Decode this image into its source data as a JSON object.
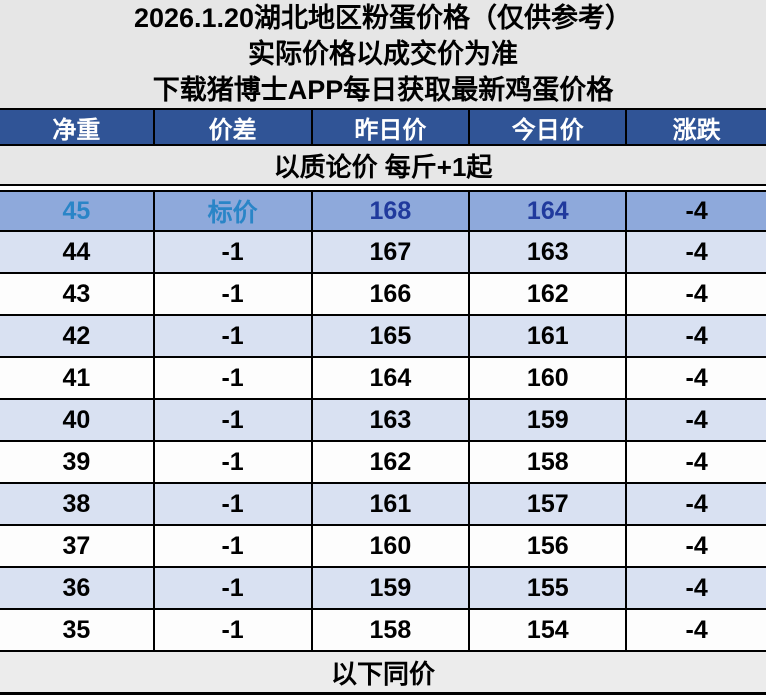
{
  "title_block": {
    "line1": "2026.1.20湖北地区粉蛋价格（仅供参考）",
    "line2": "实际价格以成交价为准",
    "line3": "下载猪博士APP每日获取最新鸡蛋价格"
  },
  "table": {
    "columns": [
      "净重",
      "价差",
      "昨日价",
      "今日价",
      "涨跌"
    ],
    "banner": "以质论价 每斤+1起",
    "footer": "以下同价",
    "rows": [
      {
        "net": "45",
        "diff": "标价",
        "yesterday": "168",
        "today": "164",
        "change": "-4"
      },
      {
        "net": "44",
        "diff": "-1",
        "yesterday": "167",
        "today": "163",
        "change": "-4"
      },
      {
        "net": "43",
        "diff": "-1",
        "yesterday": "166",
        "today": "162",
        "change": "-4"
      },
      {
        "net": "42",
        "diff": "-1",
        "yesterday": "165",
        "today": "161",
        "change": "-4"
      },
      {
        "net": "41",
        "diff": "-1",
        "yesterday": "164",
        "today": "160",
        "change": "-4"
      },
      {
        "net": "40",
        "diff": "-1",
        "yesterday": "163",
        "today": "159",
        "change": "-4"
      },
      {
        "net": "39",
        "diff": "-1",
        "yesterday": "162",
        "today": "158",
        "change": "-4"
      },
      {
        "net": "38",
        "diff": "-1",
        "yesterday": "161",
        "today": "157",
        "change": "-4"
      },
      {
        "net": "37",
        "diff": "-1",
        "yesterday": "160",
        "today": "156",
        "change": "-4"
      },
      {
        "net": "36",
        "diff": "-1",
        "yesterday": "159",
        "today": "155",
        "change": "-4"
      },
      {
        "net": "35",
        "diff": "-1",
        "yesterday": "158",
        "today": "154",
        "change": "-4"
      }
    ]
  },
  "chart_data": {
    "type": "table",
    "title": "2026.1.20湖北地区粉蛋价格（仅供参考）",
    "subtitle_lines": [
      "实际价格以成交价为准",
      "下载猪博士APP每日获取最新鸡蛋价格"
    ],
    "columns": [
      "净重",
      "价差",
      "昨日价",
      "今日价",
      "涨跌"
    ],
    "rows": [
      [
        "45",
        "标价",
        "168",
        "164",
        "-4"
      ],
      [
        "44",
        "-1",
        "167",
        "163",
        "-4"
      ],
      [
        "43",
        "-1",
        "166",
        "162",
        "-4"
      ],
      [
        "42",
        "-1",
        "165",
        "161",
        "-4"
      ],
      [
        "41",
        "-1",
        "164",
        "160",
        "-4"
      ],
      [
        "40",
        "-1",
        "163",
        "159",
        "-4"
      ],
      [
        "39",
        "-1",
        "162",
        "158",
        "-4"
      ],
      [
        "38",
        "-1",
        "161",
        "157",
        "-4"
      ],
      [
        "37",
        "-1",
        "160",
        "156",
        "-4"
      ],
      [
        "36",
        "-1",
        "159",
        "155",
        "-4"
      ],
      [
        "35",
        "-1",
        "158",
        "154",
        "-4"
      ]
    ],
    "annotations": [
      "以质论价 每斤+1起",
      "以下同价"
    ]
  },
  "colors": {
    "header_bar_blue": "#305496",
    "highlight_row_bg": "#8EA9DB",
    "alt_row_bg": "#D9E1F2",
    "gray_panel_bg": "#E6E6E6",
    "highlight_label_text": "#2A85C7",
    "highlight_price_text": "#203A9D",
    "header_text": "#FFFFFF",
    "body_text": "#000000"
  }
}
